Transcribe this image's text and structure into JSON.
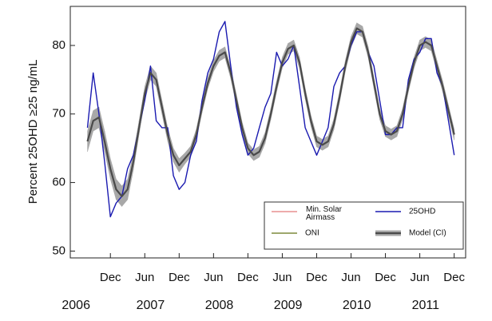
{
  "chart_data": {
    "type": "line",
    "y_label": "Percent 25OHD ≥25 ng/mL",
    "x": [
      "2006-08",
      "2006-09",
      "2006-10",
      "2006-11",
      "2006-12",
      "2007-01",
      "2007-02",
      "2007-03",
      "2007-04",
      "2007-05",
      "2007-06",
      "2007-07",
      "2007-08",
      "2007-09",
      "2007-10",
      "2007-11",
      "2007-12",
      "2008-01",
      "2008-02",
      "2008-03",
      "2008-04",
      "2008-05",
      "2008-06",
      "2008-07",
      "2008-08",
      "2008-09",
      "2008-10",
      "2008-11",
      "2008-12",
      "2009-01",
      "2009-02",
      "2009-03",
      "2009-04",
      "2009-05",
      "2009-06",
      "2009-07",
      "2009-08",
      "2009-09",
      "2009-10",
      "2009-11",
      "2009-12",
      "2010-01",
      "2010-02",
      "2010-03",
      "2010-04",
      "2010-05",
      "2010-06",
      "2010-07",
      "2010-08",
      "2010-09",
      "2010-10",
      "2010-11",
      "2010-12",
      "2011-01",
      "2011-02",
      "2011-03",
      "2011-04",
      "2011-05",
      "2011-06",
      "2011-07",
      "2011-08",
      "2011-09",
      "2011-10",
      "2011-11",
      "2011-12"
    ],
    "xlim": [
      "2006-05",
      "2012-02"
    ],
    "xticks": [
      {
        "value": "2006-12",
        "label": "Dec"
      },
      {
        "value": "2007-06",
        "label": "Jun"
      },
      {
        "value": "2007-12",
        "label": "Dec"
      },
      {
        "value": "2008-06",
        "label": "Jun"
      },
      {
        "value": "2008-12",
        "label": "Dec"
      },
      {
        "value": "2009-06",
        "label": "Jun"
      },
      {
        "value": "2009-12",
        "label": "Dec"
      },
      {
        "value": "2010-06",
        "label": "Jun"
      },
      {
        "value": "2010-12",
        "label": "Dec"
      },
      {
        "value": "2011-06",
        "label": "Jun"
      },
      {
        "value": "2011-12",
        "label": "Dec"
      }
    ],
    "year_labels": [
      {
        "value": "2006-06",
        "label": "2006"
      },
      {
        "value": "2007-07",
        "label": "2007"
      },
      {
        "value": "2008-07",
        "label": "2008"
      },
      {
        "value": "2009-07",
        "label": "2009"
      },
      {
        "value": "2010-07",
        "label": "2010"
      },
      {
        "value": "2011-07",
        "label": "2011"
      }
    ],
    "ylim": [
      49,
      85.7
    ],
    "yticks": [
      50,
      60,
      70,
      80
    ],
    "series": [
      {
        "name": "Min. Solar Airmass",
        "color": "#e89090",
        "values": [
          66,
          69,
          69.5,
          66,
          62,
          59,
          58,
          59,
          63,
          68,
          73,
          76,
          75,
          71,
          67,
          64,
          62.5,
          63.5,
          64.5,
          67,
          71,
          74.5,
          77,
          78.5,
          79,
          76,
          72,
          68,
          65,
          64,
          64.5,
          66.5,
          70,
          74,
          77.5,
          79.5,
          80,
          77.5,
          73,
          69,
          66,
          65.5,
          66,
          68.5,
          72.5,
          77,
          80.5,
          82.5,
          82,
          79,
          74.5,
          70,
          67.5,
          67,
          67.5,
          70,
          74,
          77.5,
          80,
          80.5,
          80,
          77,
          74,
          70.5,
          67
        ]
      },
      {
        "name": "ONI",
        "color": "#7d8a3c",
        "values": [
          66,
          69,
          69.5,
          66,
          62,
          59,
          58,
          59,
          63,
          68,
          73,
          76,
          75,
          71,
          67,
          64,
          62.5,
          63.5,
          64.5,
          67,
          71,
          74.5,
          77,
          78.5,
          79,
          76,
          72,
          68,
          65,
          64,
          64.5,
          66.5,
          70,
          74,
          77.5,
          79.5,
          80,
          77.5,
          73,
          69,
          66,
          65.5,
          66,
          68.5,
          72.5,
          77,
          80.5,
          82.5,
          82,
          79,
          74.5,
          70,
          67.5,
          67,
          67.5,
          70,
          74,
          77.5,
          80,
          80.5,
          80,
          77,
          74,
          70.5,
          67
        ]
      },
      {
        "name": "25OHD",
        "color": "#1a1ab0",
        "values": [
          68,
          76,
          70,
          63,
          55,
          57,
          58,
          62,
          64,
          68,
          72,
          77,
          69,
          68,
          68,
          61,
          59,
          60,
          64,
          66,
          72,
          76,
          78,
          82,
          83.5,
          77,
          71,
          67,
          64,
          65,
          68,
          71,
          73,
          79,
          77,
          78,
          80,
          74,
          68,
          66,
          64,
          66,
          68,
          74,
          76,
          77,
          80,
          82,
          82,
          79,
          77,
          72,
          67,
          67,
          68,
          68,
          75,
          78,
          79,
          81,
          81,
          76,
          74,
          69,
          64
        ]
      },
      {
        "name": "Model (CI)",
        "color": "#4a4a4a",
        "band_color": "#a8a8a8",
        "values": [
          66,
          69,
          69.5,
          66,
          62,
          59,
          58,
          59,
          63,
          68,
          73,
          76,
          75,
          71,
          67,
          64,
          62.5,
          63.5,
          64.5,
          67,
          71,
          74.5,
          77,
          78.5,
          79,
          76,
          72,
          68,
          65,
          64,
          64.5,
          66.5,
          70,
          74,
          77.5,
          79.5,
          80,
          77.5,
          73,
          69,
          66,
          65.5,
          66,
          68.5,
          72.5,
          77,
          80.5,
          82.5,
          82,
          79,
          74.5,
          70,
          67.5,
          67,
          67.5,
          70,
          74,
          77.5,
          80,
          80.5,
          80,
          77,
          74,
          70.5,
          67
        ],
        "errors": [
          1.5,
          1.5,
          1.5,
          1.5,
          1.5,
          1.5,
          1.5,
          1.5,
          1.2,
          1,
          1,
          1,
          1,
          1,
          1,
          1,
          1,
          0.8,
          0.8,
          0.8,
          0.8,
          0.8,
          0.8,
          0.8,
          0.8,
          0.8,
          0.8,
          0.8,
          0.8,
          0.8,
          0.8,
          0.8,
          0.8,
          0.8,
          0.8,
          0.8,
          0.8,
          0.8,
          0.8,
          0.8,
          0.8,
          0.8,
          0.8,
          0.8,
          0.8,
          0.8,
          0.8,
          0.8,
          0.8,
          0.8,
          0.8,
          0.8,
          0.8,
          0.8,
          0.8,
          0.8,
          0.8,
          0.8,
          0.8,
          0.8,
          0.8,
          0.8,
          0.8,
          0.8,
          0.8
        ]
      }
    ]
  }
}
